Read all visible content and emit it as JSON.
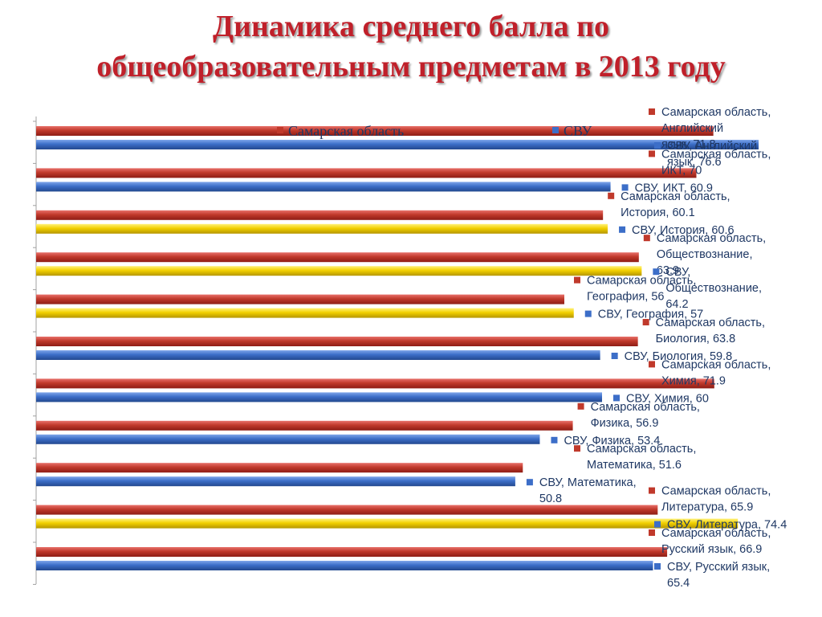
{
  "title_lines": [
    "Динамика среднего балла по",
    "общеобразовательным предметам в 2013 году"
  ],
  "colors": {
    "red": "#c0392b",
    "blue": "#3c6ec8",
    "yellow": "#f2d000",
    "title": "#c0202a",
    "label": "#1f3864",
    "axis": "#a0a0a0"
  },
  "chart_data": {
    "type": "bar",
    "orientation": "horizontal",
    "grid": false,
    "legend_position": "top",
    "xlim": [
      0,
      80
    ],
    "series": [
      {
        "name": "Самарская область",
        "color": "#c0392b"
      },
      {
        "name": "СВУ",
        "color": "#3c6ec8"
      }
    ],
    "categories": [
      "Английский язык",
      "ИКТ",
      "История",
      "Обществознание",
      "География",
      "Биология",
      "Химия",
      "Физика",
      "Математика",
      "Литература",
      "Русский язык"
    ],
    "values": {
      "Самарская область": [
        71.8,
        70,
        60.1,
        63.9,
        56,
        63.8,
        71.9,
        56.9,
        51.6,
        65.9,
        66.9
      ],
      "СВУ": [
        76.6,
        60.9,
        60.6,
        64.2,
        57,
        59.8,
        60,
        53.4,
        50.8,
        74.4,
        65.4
      ]
    },
    "svu_highlight": [
      false,
      false,
      true,
      true,
      true,
      false,
      false,
      false,
      false,
      true,
      false
    ],
    "data_labels": {
      "Самарская область": [
        [
          "Самарская область,",
          "Английский",
          "язык, 71.8"
        ],
        [
          "Самарская область,",
          "ИКТ, 70"
        ],
        [
          "Самарская область,",
          "История, 60.1"
        ],
        [
          "Самарская область,",
          "Обществознание,",
          "63.9"
        ],
        [
          "Самарская область,",
          "География, 56"
        ],
        [
          "Самарская область,",
          "Биология, 63.8"
        ],
        [
          "Самарская область,",
          "Химия, 71.9"
        ],
        [
          "Самарская область,",
          "Физика, 56.9"
        ],
        [
          "Самарская область,",
          "Математика, 51.6"
        ],
        [
          "Самарская область,",
          "Литература, 65.9"
        ],
        [
          "Самарская область,",
          "Русский язык, 66.9"
        ]
      ],
      "СВУ": [
        [
          "СВУ, Английский",
          "язык, 76.6"
        ],
        [
          "СВУ, ИКТ, 60.9"
        ],
        [
          "СВУ, История, 60.6"
        ],
        [
          "СВУ,",
          "Обществознание,",
          "64.2"
        ],
        [
          "СВУ, География, 57"
        ],
        [
          "СВУ, Биология, 59.8"
        ],
        [
          "СВУ, Химия, 60"
        ],
        [
          "СВУ, Физика, 53.4"
        ],
        [
          "СВУ, Математика,",
          "50.8"
        ],
        [
          "СВУ, Литература, 74.4"
        ],
        [
          "СВУ, Русский язык,",
          "65.4"
        ]
      ]
    }
  }
}
